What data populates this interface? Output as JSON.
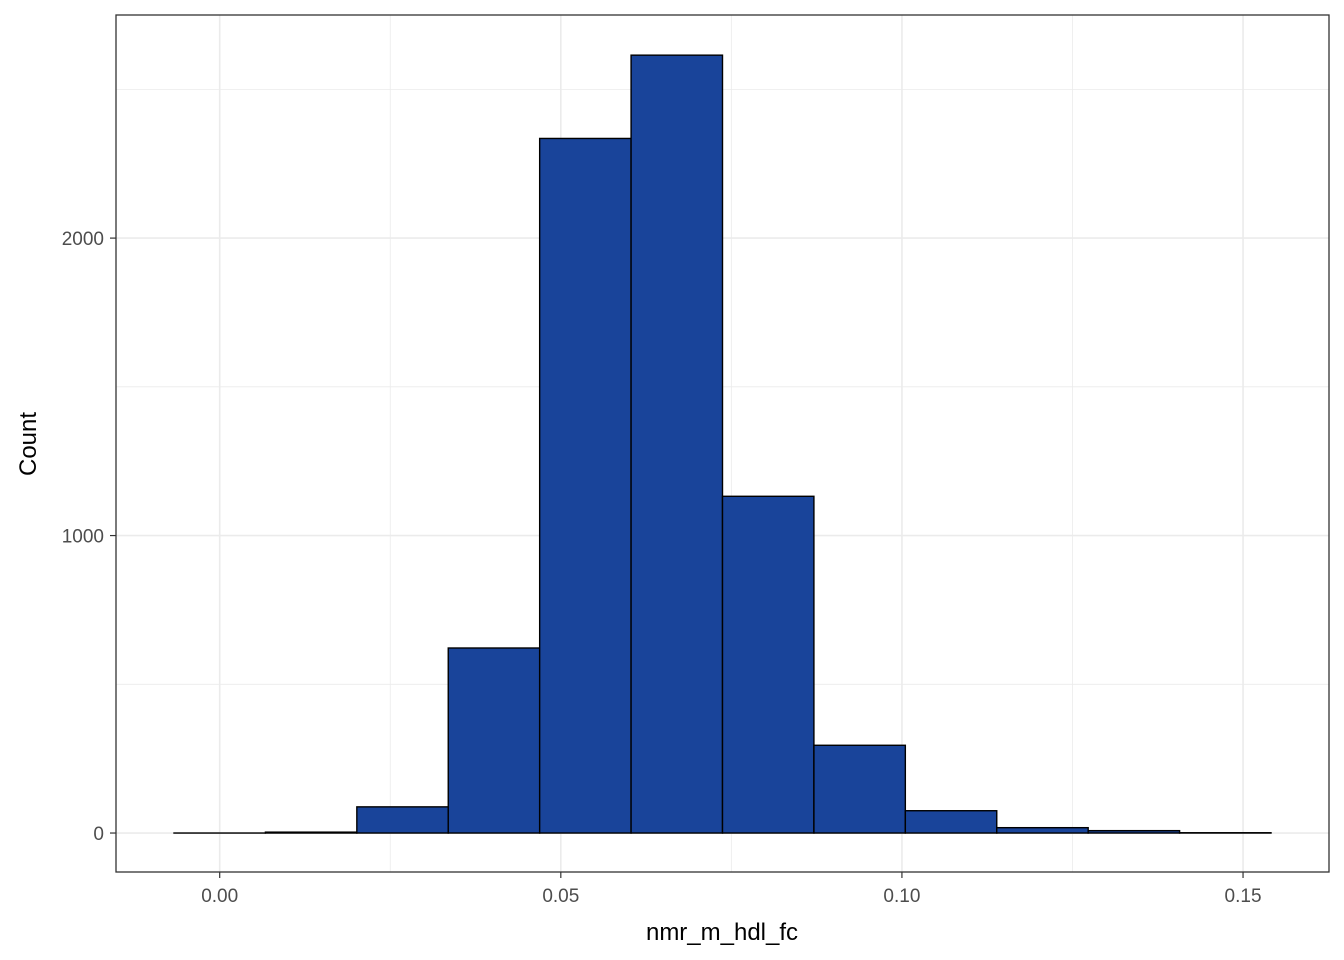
{
  "chart_data": {
    "type": "bar",
    "subtype": "histogram",
    "title": "",
    "xlabel": "nmr_m_hdl_fc",
    "ylabel": "Count",
    "bin_width": 0.0134,
    "bins": [
      {
        "x_start": -0.0067,
        "x_end": 0.0067,
        "count": 0
      },
      {
        "x_start": 0.0067,
        "x_end": 0.0201,
        "count": 3
      },
      {
        "x_start": 0.0201,
        "x_end": 0.0335,
        "count": 88
      },
      {
        "x_start": 0.0335,
        "x_end": 0.0469,
        "count": 622
      },
      {
        "x_start": 0.0469,
        "x_end": 0.0603,
        "count": 2335
      },
      {
        "x_start": 0.0603,
        "x_end": 0.0737,
        "count": 2615
      },
      {
        "x_start": 0.0737,
        "x_end": 0.0871,
        "count": 1132
      },
      {
        "x_start": 0.0871,
        "x_end": 0.1005,
        "count": 295
      },
      {
        "x_start": 0.1005,
        "x_end": 0.1139,
        "count": 75
      },
      {
        "x_start": 0.1139,
        "x_end": 0.1273,
        "count": 18
      },
      {
        "x_start": 0.1273,
        "x_end": 0.1407,
        "count": 8
      },
      {
        "x_start": 0.1407,
        "x_end": 0.1541,
        "count": 1
      }
    ],
    "xlim": [
      -0.0152,
      0.1626
    ],
    "ylim": [
      -131,
      2750
    ],
    "x_ticks": [
      0.0,
      0.05,
      0.1,
      0.15
    ],
    "x_tick_labels": [
      "0.00",
      "0.05",
      "0.10",
      "0.15"
    ],
    "y_ticks": [
      0,
      1000,
      2000
    ],
    "y_tick_labels": [
      "0",
      "1000",
      "2000"
    ],
    "x_minor_ticks": [
      0.025,
      0.075,
      0.125
    ],
    "y_minor_ticks": [
      500,
      1500,
      2500
    ],
    "grid": true,
    "legend": "none",
    "colors": {
      "bar_fill": "#19449A",
      "bar_outline": "#000000",
      "grid": "#EBEBEB",
      "panel_border": "#333333",
      "tick_label": "#4D4D4D"
    }
  }
}
